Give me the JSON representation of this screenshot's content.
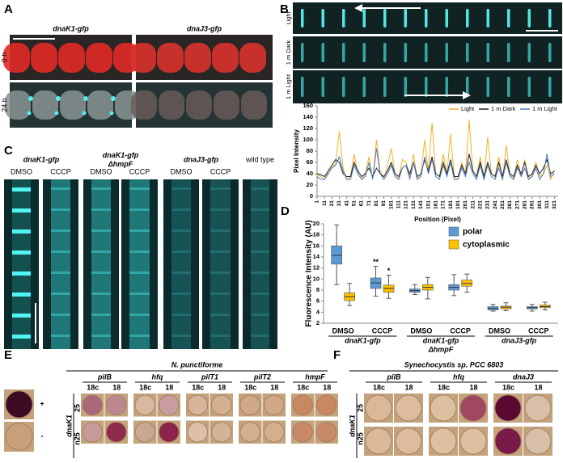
{
  "panel_labels": [
    "A",
    "B",
    "C",
    "D",
    "E",
    "F"
  ],
  "panel_a": {
    "columns": [
      "dnaK1-gfp",
      "dnaJ3-gfp"
    ],
    "rows": [
      "0 h",
      "24 h"
    ]
  },
  "panel_b": {
    "rows": [
      "Light",
      "1 m Dark",
      "1 m Light"
    ]
  },
  "panel_c": {
    "strains": [
      {
        "lines": [
          "dnaK1-gfp"
        ],
        "treatments": [
          "DMSO",
          "CCCP"
        ]
      },
      {
        "lines": [
          "dnaK1-gfp",
          "ΔhmpF"
        ],
        "treatments": [
          "DMSO",
          "CCCP"
        ]
      },
      {
        "lines": [
          "dnaJ3-gfp"
        ],
        "treatments": [
          "DMSO",
          "CCCP"
        ]
      },
      {
        "lines": [
          "wild type"
        ]
      }
    ]
  },
  "chart_data": [
    {
      "type": "line",
      "x_label": "Position (Pixel)",
      "y_label": "Pixel Intensity",
      "x": [
        1,
        6,
        11,
        16,
        21,
        26,
        31,
        36,
        41,
        46,
        51,
        56,
        61,
        66,
        71,
        76,
        81,
        86,
        91,
        96,
        101,
        106,
        111,
        116,
        121,
        126,
        131,
        136,
        141,
        146,
        151,
        156,
        161,
        166,
        171,
        176,
        181,
        186,
        191,
        196,
        201,
        206,
        211,
        216,
        221,
        226,
        231,
        236,
        241,
        246,
        251,
        256,
        261,
        266,
        271,
        276,
        281,
        286,
        291,
        296,
        301,
        306,
        311,
        316,
        321
      ],
      "xlim": [
        1,
        326
      ],
      "xticks": [
        1,
        11,
        21,
        31,
        41,
        51,
        61,
        71,
        81,
        91,
        101,
        111,
        121,
        131,
        141,
        151,
        161,
        171,
        181,
        191,
        201,
        211,
        221,
        231,
        241,
        251,
        261,
        271,
        281,
        291,
        301,
        311,
        321
      ],
      "ylim": [
        0,
        160
      ],
      "yticks": [
        0,
        20,
        40,
        60,
        80,
        100,
        120,
        140,
        160
      ],
      "legend": "top-right",
      "series": [
        {
          "name": "Light",
          "color": "#f0b429",
          "values": [
            40,
            35,
            30,
            45,
            50,
            60,
            115,
            50,
            30,
            35,
            75,
            40,
            30,
            40,
            70,
            30,
            100,
            45,
            30,
            55,
            85,
            40,
            30,
            65,
            60,
            35,
            75,
            30,
            40,
            100,
            45,
            130,
            40,
            35,
            75,
            40,
            110,
            35,
            30,
            60,
            40,
            135,
            45,
            35,
            70,
            30,
            105,
            40,
            35,
            70,
            30,
            90,
            40,
            30,
            65,
            35,
            65,
            30,
            40,
            60,
            35,
            40,
            55,
            30,
            45
          ]
        },
        {
          "name": "1 m Dark",
          "color": "#222222",
          "values": [
            40,
            38,
            35,
            45,
            55,
            65,
            60,
            40,
            35,
            35,
            60,
            45,
            35,
            40,
            50,
            35,
            50,
            40,
            35,
            45,
            60,
            40,
            35,
            50,
            55,
            40,
            60,
            35,
            40,
            65,
            45,
            70,
            40,
            35,
            60,
            40,
            65,
            35,
            35,
            55,
            40,
            75,
            45,
            35,
            60,
            35,
            60,
            40,
            35,
            60,
            35,
            65,
            40,
            35,
            55,
            40,
            60,
            35,
            40,
            55,
            40,
            50,
            65,
            40,
            45
          ]
        },
        {
          "name": "1 m Light",
          "color": "#4a78c8",
          "values": [
            35,
            30,
            30,
            40,
            50,
            55,
            70,
            45,
            30,
            30,
            55,
            40,
            30,
            35,
            60,
            30,
            85,
            40,
            30,
            40,
            55,
            35,
            30,
            50,
            55,
            30,
            60,
            30,
            35,
            70,
            40,
            65,
            35,
            30,
            55,
            35,
            60,
            30,
            30,
            50,
            35,
            60,
            40,
            30,
            55,
            30,
            55,
            35,
            30,
            50,
            30,
            60,
            35,
            30,
            50,
            35,
            50,
            30,
            35,
            50,
            30,
            40,
            75,
            35,
            40
          ]
        }
      ]
    },
    {
      "type": "box",
      "y_label": "Fluorescence Intensity (AU)",
      "ylim": [
        2,
        20
      ],
      "yticks": [
        2,
        4,
        6,
        8,
        10,
        12,
        14,
        16,
        18,
        20
      ],
      "legend": "top-right",
      "categories": [
        "DMSO",
        "CCCP",
        "DMSO",
        "CCCP",
        "DMSO",
        "CCCP"
      ],
      "groups": [
        [
          "dnaK1-gfp"
        ],
        [
          "dnaK1-gfp",
          "ΔhmpF"
        ],
        [
          "dnaJ3-gfp"
        ]
      ],
      "annotations": [
        "**",
        "*"
      ],
      "series": [
        {
          "name": "polar",
          "color": "#5b9bd5",
          "min": [
            9.0,
            6.9,
            7.2,
            7.0,
            4.2,
            4.2
          ],
          "q1": [
            12.7,
            8.3,
            7.6,
            8.0,
            4.4,
            4.6
          ],
          "median": [
            14.3,
            9.3,
            7.9,
            8.5,
            4.7,
            4.8
          ],
          "q3": [
            16.0,
            10.2,
            8.2,
            9.0,
            5.0,
            5.0
          ],
          "max": [
            19.8,
            12.3,
            9.0,
            10.8,
            5.4,
            5.4
          ]
        },
        {
          "name": "cytoplasmic",
          "color": "#ffc000",
          "min": [
            5.2,
            6.5,
            6.4,
            7.6,
            4.3,
            4.4
          ],
          "q1": [
            6.1,
            7.6,
            8.0,
            8.7,
            4.6,
            4.8
          ],
          "median": [
            6.8,
            8.3,
            8.5,
            9.2,
            4.9,
            5.0
          ],
          "q3": [
            7.5,
            8.9,
            9.0,
            9.8,
            5.1,
            5.3
          ],
          "max": [
            9.2,
            10.7,
            10.3,
            10.9,
            5.7,
            5.8
          ]
        }
      ]
    }
  ],
  "panel_e": {
    "title": "N. punctiforme",
    "genes": [
      "pilB",
      "hfq",
      "pilT1",
      "pilT2",
      "hmpF"
    ],
    "conditions": [
      "18c",
      "18"
    ],
    "row_group": "dnaK1",
    "rows": [
      "25",
      "n25"
    ],
    "controls": [
      "+",
      "-"
    ]
  },
  "panel_f": {
    "title": "Synechocystis sp. PCC 6803",
    "genes": [
      "pilB",
      "hfq",
      "dnaJ3"
    ],
    "conditions": [
      "18c",
      "18"
    ],
    "row_group": "dnaK1",
    "rows": [
      "25",
      "n25"
    ]
  }
}
